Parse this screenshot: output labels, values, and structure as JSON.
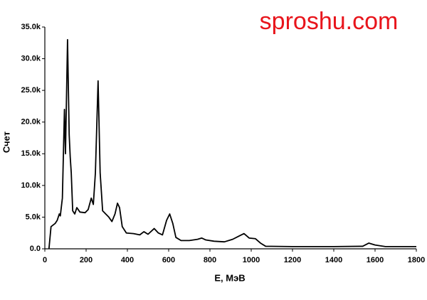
{
  "chart_data": {
    "type": "line",
    "watermark": "sproshu.com",
    "xlabel": "E, МэВ",
    "ylabel": "Счет",
    "color": "#000000",
    "grid": false,
    "x": [
      20,
      30,
      50,
      60,
      70,
      75,
      85,
      95,
      100,
      110,
      118,
      123,
      128,
      135,
      145,
      155,
      170,
      195,
      210,
      225,
      235,
      245,
      258,
      268,
      280,
      295,
      310,
      325,
      340,
      352,
      362,
      375,
      395,
      430,
      460,
      480,
      500,
      530,
      550,
      570,
      590,
      605,
      620,
      635,
      660,
      700,
      740,
      760,
      780,
      820,
      870,
      910,
      940,
      965,
      990,
      1020,
      1045,
      1070,
      1200,
      1400,
      1540,
      1570,
      1600,
      1650,
      1800
    ],
    "values": [
      0,
      3500,
      4000,
      4500,
      5500,
      5200,
      8000,
      22000,
      15000,
      33000,
      18000,
      14500,
      12000,
      6000,
      5500,
      6500,
      5800,
      5700,
      6200,
      8000,
      7000,
      12000,
      26500,
      12000,
      6000,
      5500,
      5000,
      4300,
      5500,
      7200,
      6500,
      3500,
      2500,
      2400,
      2200,
      2700,
      2300,
      3200,
      2500,
      2200,
      4500,
      5500,
      4000,
      1800,
      1300,
      1300,
      1500,
      1700,
      1400,
      1200,
      1100,
      1500,
      2000,
      2400,
      1700,
      1600,
      900,
      400,
      350,
      350,
      400,
      900,
      600,
      350,
      350
    ],
    "xlim": [
      0,
      1800
    ],
    "xticks": [
      0,
      200,
      400,
      600,
      800,
      1000,
      1200,
      1400,
      1600,
      1800
    ],
    "ylim": [
      0,
      35000
    ],
    "yticks": [
      {
        "value": 0,
        "label": "0.0"
      },
      {
        "value": 5000,
        "label": "5.0k"
      },
      {
        "value": 10000,
        "label": "10.0k"
      },
      {
        "value": 15000,
        "label": "15.0k"
      },
      {
        "value": 20000,
        "label": "20.0k"
      },
      {
        "value": 25000,
        "label": "25.0k"
      },
      {
        "value": 30000,
        "label": "30.0k"
      },
      {
        "value": 35000,
        "label": "35.0k"
      }
    ]
  }
}
